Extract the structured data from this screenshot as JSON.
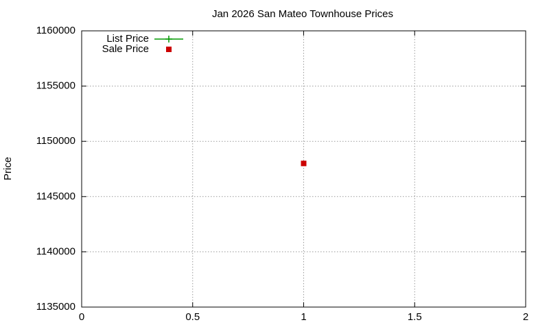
{
  "chart_data": {
    "type": "scatter",
    "title": "Jan 2026 San Mateo Townhouse Prices",
    "y_label": "Price",
    "x": [
      1
    ],
    "series": [
      {
        "name": "List Price",
        "color": "#009900",
        "marker": "plus",
        "line": true,
        "values": [
          null
        ]
      },
      {
        "name": "Sale Price",
        "color": "#cc0000",
        "marker": "square",
        "line": false,
        "values": [
          1148000
        ]
      }
    ],
    "xlim": [
      0,
      2
    ],
    "xticks": [
      0,
      0.5,
      1,
      1.5,
      2
    ],
    "ylim": [
      1135000,
      1160000
    ],
    "yticks": [
      1135000,
      1140000,
      1145000,
      1150000,
      1155000,
      1160000
    ],
    "grid": true,
    "legend": "top-left"
  }
}
